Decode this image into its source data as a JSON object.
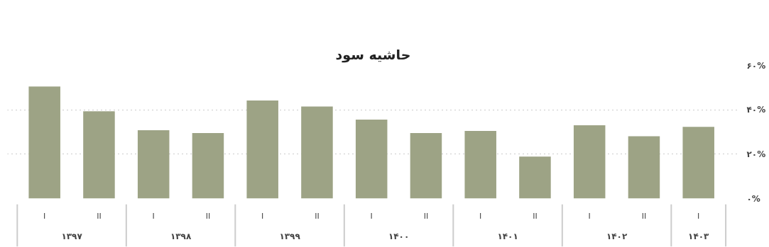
{
  "chart_data": {
    "type": "bar",
    "title": "حاشیه سود",
    "categories": [
      "I",
      "II",
      "I",
      "II",
      "I",
      "II",
      "I",
      "II",
      "I",
      "II",
      "I",
      "II",
      "I"
    ],
    "annotations": [
      "۱۳۹۷",
      "۱۳۹۸",
      "۱۳۹۹",
      "۱۴۰۰",
      "۱۴۰۱",
      "۱۴۰۲",
      "۱۴۰۳"
    ],
    "values": [
      50.5,
      39.3,
      30.8,
      29.5,
      44.2,
      41.5,
      35.6,
      29.5,
      30.5,
      18.9,
      33.0,
      28.1,
      32.3
    ],
    "color": "#9da385",
    "ylim": [
      0,
      60
    ],
    "yticks": [
      {
        "value": 0,
        "label": "۰%"
      },
      {
        "value": 20,
        "label": "۲۰%"
      },
      {
        "value": 40,
        "label": "۴۰%"
      },
      {
        "value": 60,
        "label": "۶۰%"
      }
    ],
    "grid": "y"
  }
}
